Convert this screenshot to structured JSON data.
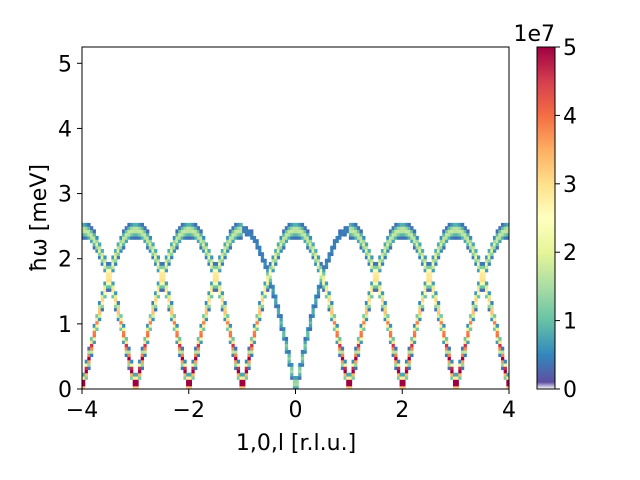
{
  "chart_data": {
    "type": "heatmap",
    "title": "",
    "xlabel": "1,0,l [r.l.u.]",
    "ylabel": "ħω [meV]",
    "xlim": [
      -4,
      4
    ],
    "ylim": [
      0,
      5.25
    ],
    "x_ticks": [
      -4,
      -2,
      0,
      2,
      4
    ],
    "x_tick_labels": [
      "−4",
      "−2",
      "0",
      "2",
      "4"
    ],
    "y_ticks": [
      0,
      1,
      2,
      3,
      4,
      5
    ],
    "y_tick_labels": [
      "0",
      "1",
      "2",
      "3",
      "4",
      "5"
    ],
    "colorbar": {
      "colormap": "Spectral_r",
      "range": [
        0,
        5
      ],
      "ticks": [
        0,
        1,
        2,
        3,
        4,
        5
      ],
      "tick_labels": [
        "0",
        "1",
        "2",
        "3",
        "4",
        "5"
      ],
      "multiplier": "1e7",
      "colors": [
        "#5e4fa2",
        "#3288bd",
        "#66c2a5",
        "#abdda4",
        "#e6f598",
        "#ffffbf",
        "#fee08b",
        "#fdae61",
        "#f46d43",
        "#d53e4f",
        "#9e0142"
      ]
    },
    "dispersion": {
      "description_values": "spin-wave branches: two modes with minima near 0 meV at integer l and maxima near 2.4 meV, crossing at ~1.8 meV at half-integer l",
      "branch_minima_l": [
        -3,
        -1,
        0,
        1,
        3
      ],
      "min_energy": 0.0,
      "max_energy": 2.45,
      "crossing_energy": 1.75,
      "crossing_l": [
        -3.5,
        -2.5,
        -1.5,
        1.5,
        2.5,
        3.5
      ],
      "gap_energy_upper_branch": 0.65,
      "max_intensity": 5
    },
    "grid": false
  }
}
